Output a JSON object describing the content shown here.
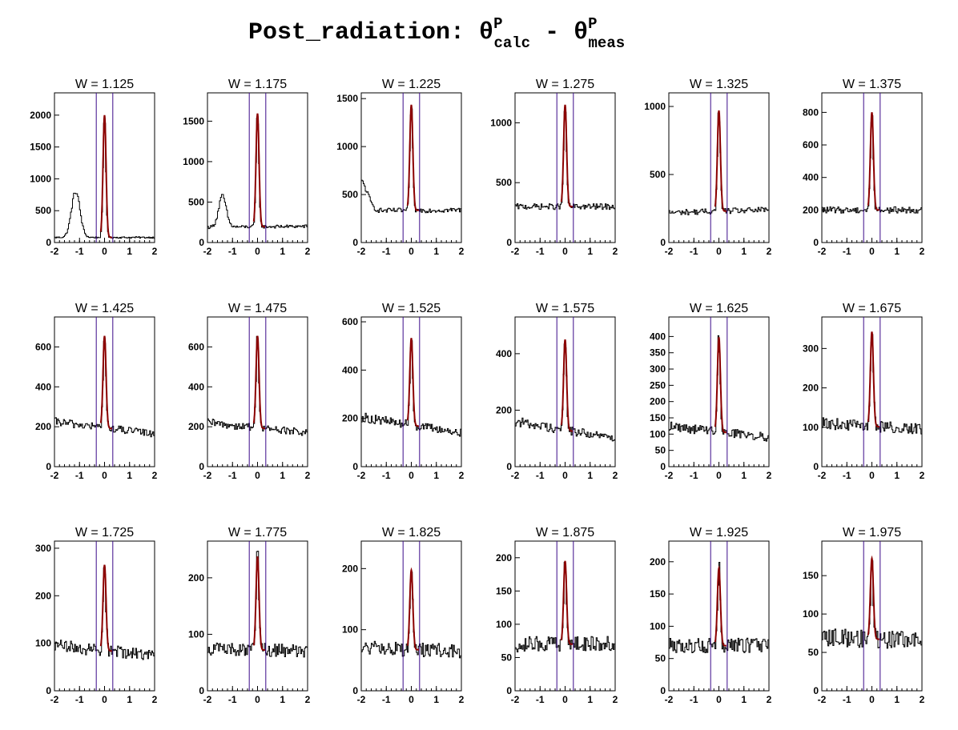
{
  "title": {
    "prefix": "Post_radiation: ",
    "theta": "θ",
    "sup1": "P",
    "sub1": "calc",
    "minus": " - ",
    "sup2": "P",
    "sub2": "meas"
  },
  "chart_data": [
    {
      "type": "histogram",
      "title": "W = 1.125",
      "xlim": [
        -2,
        2
      ],
      "xticks": [
        -2,
        -1,
        0,
        1,
        2
      ],
      "ylim": [
        0,
        2350
      ],
      "yticks": [
        0,
        500,
        1000,
        1500,
        2000
      ],
      "peak": 2000,
      "peak_height": 1920,
      "lin_base": [
        80,
        80
      ],
      "bumps": [
        {
          "c": -1.15,
          "w": 0.17,
          "h": 720
        }
      ],
      "cuts": [
        -0.33,
        0.33
      ],
      "sigma": 0.055
    },
    {
      "type": "histogram",
      "title": "W = 1.175",
      "xlim": [
        -2,
        2
      ],
      "xticks": [
        -2,
        -1,
        0,
        1,
        2
      ],
      "ylim": [
        0,
        1850
      ],
      "yticks": [
        0,
        500,
        1000,
        1500
      ],
      "peak": 1600,
      "peak_height": 1400,
      "lin_base": [
        190,
        200
      ],
      "bumps": [
        {
          "c": -1.4,
          "w": 0.15,
          "h": 380
        }
      ],
      "cuts": [
        -0.33,
        0.33
      ],
      "sigma": 0.055
    },
    {
      "type": "histogram",
      "title": "W = 1.225",
      "xlim": [
        -2,
        2
      ],
      "xticks": [
        -2,
        -1,
        0,
        1,
        2
      ],
      "ylim": [
        0,
        1560
      ],
      "yticks": [
        0,
        500,
        1000,
        1500
      ],
      "peak": 1450,
      "peak_height": 1100,
      "lin_base": [
        330,
        340
      ],
      "bumps": [
        {
          "c": -2.0,
          "w": 0.25,
          "h": 300
        }
      ],
      "cuts": [
        -0.33,
        0.33
      ],
      "sigma": 0.055
    },
    {
      "type": "histogram",
      "title": "W = 1.275",
      "xlim": [
        -2,
        2
      ],
      "xticks": [
        -2,
        -1,
        0,
        1,
        2
      ],
      "ylim": [
        0,
        1250
      ],
      "yticks": [
        0,
        500,
        1000
      ],
      "peak": 1150,
      "peak_height": 850,
      "lin_base": [
        300,
        300
      ],
      "bumps": [],
      "cuts": [
        -0.33,
        0.33
      ],
      "sigma": 0.055
    },
    {
      "type": "histogram",
      "title": "W = 1.325",
      "xlim": [
        -2,
        2
      ],
      "xticks": [
        -2,
        -1,
        0,
        1,
        2
      ],
      "ylim": [
        0,
        1100
      ],
      "yticks": [
        0,
        500,
        1000
      ],
      "peak": 980,
      "peak_height": 740,
      "lin_base": [
        220,
        240
      ],
      "bumps": [],
      "cuts": [
        -0.33,
        0.33
      ],
      "sigma": 0.055
    },
    {
      "type": "histogram",
      "title": "W = 1.375",
      "xlim": [
        -2,
        2
      ],
      "xticks": [
        -2,
        -1,
        0,
        1,
        2
      ],
      "ylim": [
        0,
        920
      ],
      "yticks": [
        0,
        200,
        400,
        600,
        800
      ],
      "peak": 840,
      "peak_height": 600,
      "lin_base": [
        200,
        200
      ],
      "bumps": [],
      "cuts": [
        -0.33,
        0.33
      ],
      "sigma": 0.055
    },
    {
      "type": "histogram",
      "title": "W = 1.425",
      "xlim": [
        -2,
        2
      ],
      "xticks": [
        -2,
        -1,
        0,
        1,
        2
      ],
      "ylim": [
        0,
        750
      ],
      "yticks": [
        0,
        200,
        400,
        600
      ],
      "peak": 700,
      "peak_height": 460,
      "lin_base": [
        225,
        165
      ],
      "bumps": [],
      "cuts": [
        -0.33,
        0.33
      ],
      "sigma": 0.055
    },
    {
      "type": "histogram",
      "title": "W = 1.475",
      "xlim": [
        -2,
        2
      ],
      "xticks": [
        -2,
        -1,
        0,
        1,
        2
      ],
      "ylim": [
        0,
        750
      ],
      "yticks": [
        0,
        200,
        400,
        600
      ],
      "peak": 680,
      "peak_height": 460,
      "lin_base": [
        220,
        170
      ],
      "bumps": [],
      "cuts": [
        -0.33,
        0.33
      ],
      "sigma": 0.055
    },
    {
      "type": "histogram",
      "title": "W = 1.525",
      "xlim": [
        -2,
        2
      ],
      "xticks": [
        -2,
        -1,
        0,
        1,
        2
      ],
      "ylim": [
        0,
        620
      ],
      "yticks": [
        0,
        200,
        400,
        600
      ],
      "peak": 560,
      "peak_height": 360,
      "lin_base": [
        205,
        140
      ],
      "bumps": [],
      "cuts": [
        -0.33,
        0.33
      ],
      "sigma": 0.055
    },
    {
      "type": "histogram",
      "title": "W = 1.575",
      "xlim": [
        -2,
        2
      ],
      "xticks": [
        -2,
        -1,
        0,
        1,
        2
      ],
      "ylim": [
        0,
        530
      ],
      "yticks": [
        0,
        200,
        400
      ],
      "peak": 480,
      "peak_height": 320,
      "lin_base": [
        160,
        100
      ],
      "bumps": [],
      "cuts": [
        -0.33,
        0.33
      ],
      "sigma": 0.055
    },
    {
      "type": "histogram",
      "title": "W = 1.625",
      "xlim": [
        -2,
        2
      ],
      "xticks": [
        -2,
        -1,
        0,
        1,
        2
      ],
      "ylim": [
        0,
        460
      ],
      "yticks": [
        0,
        50,
        100,
        150,
        200,
        250,
        300,
        350,
        400
      ],
      "peak": 410,
      "peak_height": 290,
      "lin_base": [
        125,
        90
      ],
      "bumps": [],
      "cuts": [
        -0.33,
        0.33
      ],
      "sigma": 0.055
    },
    {
      "type": "histogram",
      "title": "W = 1.675",
      "xlim": [
        -2,
        2
      ],
      "xticks": [
        -2,
        -1,
        0,
        1,
        2
      ],
      "ylim": [
        0,
        380
      ],
      "yticks": [
        0,
        100,
        200,
        300
      ],
      "peak": 350,
      "peak_height": 240,
      "lin_base": [
        110,
        95
      ],
      "bumps": [],
      "cuts": [
        -0.33,
        0.33
      ],
      "sigma": 0.055
    },
    {
      "type": "histogram",
      "title": "W = 1.725",
      "xlim": [
        -2,
        2
      ],
      "xticks": [
        -2,
        -1,
        0,
        1,
        2
      ],
      "ylim": [
        0,
        315
      ],
      "yticks": [
        0,
        100,
        200,
        300
      ],
      "peak": 285,
      "peak_height": 180,
      "lin_base": [
        95,
        75
      ],
      "bumps": [],
      "cuts": [
        -0.33,
        0.33
      ],
      "sigma": 0.055
    },
    {
      "type": "histogram",
      "title": "W = 1.775",
      "xlim": [
        -2,
        2
      ],
      "xticks": [
        -2,
        -1,
        0,
        1,
        2
      ],
      "ylim": [
        0,
        265
      ],
      "yticks": [
        0,
        100,
        200
      ],
      "peak": 240,
      "peak_height": 165,
      "lin_base": [
        75,
        70
      ],
      "bumps": [],
      "cuts": [
        -0.33,
        0.33
      ],
      "sigma": 0.055
    },
    {
      "type": "histogram",
      "title": "W = 1.825",
      "xlim": [
        -2,
        2
      ],
      "xticks": [
        -2,
        -1,
        0,
        1,
        2
      ],
      "ylim": [
        0,
        245
      ],
      "yticks": [
        0,
        100,
        200
      ],
      "peak": 205,
      "peak_height": 130,
      "lin_base": [
        70,
        65
      ],
      "bumps": [],
      "cuts": [
        -0.33,
        0.33
      ],
      "sigma": 0.055
    },
    {
      "type": "histogram",
      "title": "W = 1.875",
      "xlim": [
        -2,
        2
      ],
      "xticks": [
        -2,
        -1,
        0,
        1,
        2
      ],
      "ylim": [
        0,
        225
      ],
      "yticks": [
        0,
        50,
        100,
        150,
        200
      ],
      "peak": 200,
      "peak_height": 125,
      "lin_base": [
        70,
        70
      ],
      "bumps": [],
      "cuts": [
        -0.33,
        0.33
      ],
      "sigma": 0.055
    },
    {
      "type": "histogram",
      "title": "W = 1.925",
      "xlim": [
        -2,
        2
      ],
      "xticks": [
        -2,
        -1,
        0,
        1,
        2
      ],
      "ylim": [
        0,
        232
      ],
      "yticks": [
        0,
        50,
        100,
        150,
        200
      ],
      "peak": 195,
      "peak_height": 120,
      "lin_base": [
        70,
        70
      ],
      "bumps": [],
      "cuts": [
        -0.33,
        0.33
      ],
      "sigma": 0.055
    },
    {
      "type": "histogram",
      "title": "W = 1.975",
      "xlim": [
        -2,
        2
      ],
      "xticks": [
        -2,
        -1,
        0,
        1,
        2
      ],
      "ylim": [
        0,
        195
      ],
      "yticks": [
        0,
        50,
        100,
        150
      ],
      "peak": 180,
      "peak_height": 105,
      "lin_base": [
        70,
        65
      ],
      "bumps": [],
      "cuts": [
        -0.33,
        0.33
      ],
      "sigma": 0.055
    }
  ]
}
